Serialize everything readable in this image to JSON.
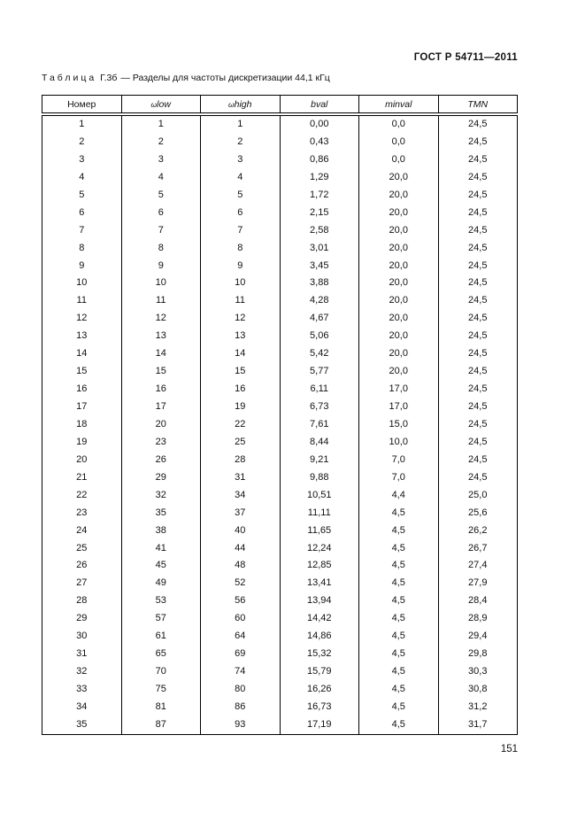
{
  "page": {
    "standard": "ГОСТ Р 54711—2011",
    "page_number": "151"
  },
  "table": {
    "caption": {
      "word": "Таблица",
      "id": "Г.3б",
      "dash": "—",
      "title": "Разделы для частоты дискретизации 44,1 кГц"
    },
    "columns": [
      {
        "label": "Номер",
        "italic": false
      },
      {
        "prefix": "ω",
        "label": "low",
        "italic": true
      },
      {
        "prefix": "ω",
        "label": "high",
        "italic": true
      },
      {
        "label": "bval",
        "italic": true
      },
      {
        "label": "minval",
        "italic": true
      },
      {
        "label": "TMN",
        "italic": true
      }
    ],
    "rows": [
      [
        "1",
        "1",
        "1",
        "0,00",
        "0,0",
        "24,5"
      ],
      [
        "2",
        "2",
        "2",
        "0,43",
        "0,0",
        "24,5"
      ],
      [
        "3",
        "3",
        "3",
        "0,86",
        "0,0",
        "24,5"
      ],
      [
        "4",
        "4",
        "4",
        "1,29",
        "20,0",
        "24,5"
      ],
      [
        "5",
        "5",
        "5",
        "1,72",
        "20,0",
        "24,5"
      ],
      [
        "6",
        "6",
        "6",
        "2,15",
        "20,0",
        "24,5"
      ],
      [
        "7",
        "7",
        "7",
        "2,58",
        "20,0",
        "24,5"
      ],
      [
        "8",
        "8",
        "8",
        "3,01",
        "20,0",
        "24,5"
      ],
      [
        "9",
        "9",
        "9",
        "3,45",
        "20,0",
        "24,5"
      ],
      [
        "10",
        "10",
        "10",
        "3,88",
        "20,0",
        "24,5"
      ],
      [
        "11",
        "11",
        "11",
        "4,28",
        "20,0",
        "24,5"
      ],
      [
        "12",
        "12",
        "12",
        "4,67",
        "20,0",
        "24,5"
      ],
      [
        "13",
        "13",
        "13",
        "5,06",
        "20,0",
        "24,5"
      ],
      [
        "14",
        "14",
        "14",
        "5,42",
        "20,0",
        "24,5"
      ],
      [
        "15",
        "15",
        "15",
        "5,77",
        "20,0",
        "24,5"
      ],
      [
        "16",
        "16",
        "16",
        "6,11",
        "17,0",
        "24,5"
      ],
      [
        "17",
        "17",
        "19",
        "6,73",
        "17,0",
        "24,5"
      ],
      [
        "18",
        "20",
        "22",
        "7,61",
        "15,0",
        "24,5"
      ],
      [
        "19",
        "23",
        "25",
        "8,44",
        "10,0",
        "24,5"
      ],
      [
        "20",
        "26",
        "28",
        "9,21",
        "7,0",
        "24,5"
      ],
      [
        "21",
        "29",
        "31",
        "9,88",
        "7,0",
        "24,5"
      ],
      [
        "22",
        "32",
        "34",
        "10,51",
        "4,4",
        "25,0"
      ],
      [
        "23",
        "35",
        "37",
        "11,11",
        "4,5",
        "25,6"
      ],
      [
        "24",
        "38",
        "40",
        "11,65",
        "4,5",
        "26,2"
      ],
      [
        "25",
        "41",
        "44",
        "12,24",
        "4,5",
        "26,7"
      ],
      [
        "26",
        "45",
        "48",
        "12,85",
        "4,5",
        "27,4"
      ],
      [
        "27",
        "49",
        "52",
        "13,41",
        "4,5",
        "27,9"
      ],
      [
        "28",
        "53",
        "56",
        "13,94",
        "4,5",
        "28,4"
      ],
      [
        "29",
        "57",
        "60",
        "14,42",
        "4,5",
        "28,9"
      ],
      [
        "30",
        "61",
        "64",
        "14,86",
        "4,5",
        "29,4"
      ],
      [
        "31",
        "65",
        "69",
        "15,32",
        "4,5",
        "29,8"
      ],
      [
        "32",
        "70",
        "74",
        "15,79",
        "4,5",
        "30,3"
      ],
      [
        "33",
        "75",
        "80",
        "16,26",
        "4,5",
        "30,8"
      ],
      [
        "34",
        "81",
        "86",
        "16,73",
        "4,5",
        "31,2"
      ],
      [
        "35",
        "87",
        "93",
        "17,19",
        "4,5",
        "31,7"
      ]
    ]
  }
}
